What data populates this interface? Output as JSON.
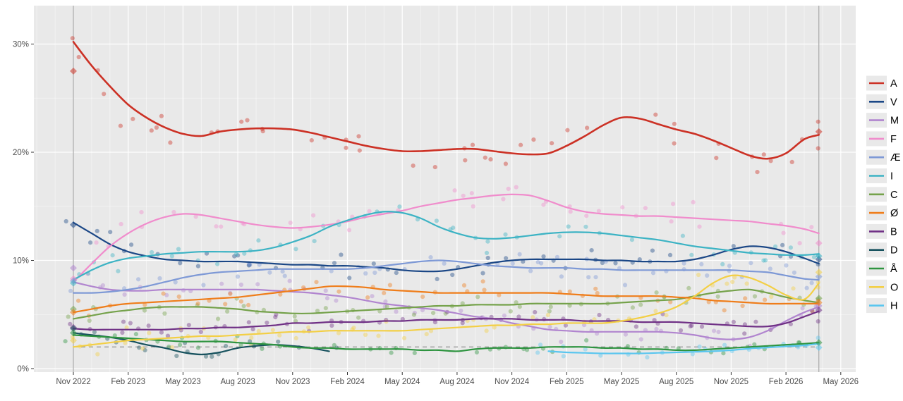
{
  "chart_data": {
    "type": "scatter",
    "subtype": "poll-scatter-with-loess-trend",
    "title": "",
    "x_start_label": "Nov 2022",
    "x_tick_labels": [
      "Nov 2022",
      "Feb 2023",
      "May 2023",
      "Aug 2023",
      "Nov 2023",
      "Feb 2024",
      "May 2024",
      "Aug 2024",
      "Nov 2024",
      "Feb 2025",
      "May 2025",
      "Aug 2025",
      "Nov 2025",
      "Feb 2026",
      "May 2026"
    ],
    "y_tick_labels": [
      "0%",
      "10%",
      "20%",
      "30%"
    ],
    "y_major_ticks": [
      0,
      10,
      20,
      30
    ],
    "y_minor_ticks": [
      5,
      15,
      25
    ],
    "ylim": [
      0,
      33.5
    ],
    "x_total_months": 42,
    "election_line_month": 0,
    "today_line_month": 40.8,
    "threshold_value": 2,
    "threshold_style": "dashed",
    "grid": "on",
    "legend_position": "right",
    "panel_bg": "#e9e9e9",
    "grid_color": "#ffffff",
    "refline_color": "#a8a8a8",
    "threshold_color": "#9a9a9a",
    "tick_label_color": "#4d4d4d",
    "parties": [
      {
        "letter": "A",
        "color": "#cc3125",
        "election_result": 27.5,
        "latest_avg": 21.9,
        "dot_spread": 1.5,
        "trend": [
          30.2,
          28.0,
          26.1,
          24.4,
          23.2,
          22.3,
          21.7,
          21.5,
          21.9,
          22.1,
          22.2,
          22.2,
          22.1,
          21.8,
          21.4,
          21.0,
          20.6,
          20.3,
          20.1,
          20.1,
          20.2,
          20.3,
          20.3,
          20.1,
          19.9,
          19.8,
          19.9,
          20.6,
          21.5,
          22.5,
          23.2,
          23.1,
          22.6,
          22.1,
          21.7,
          21.1,
          20.4,
          19.7,
          19.4,
          19.9,
          21.2,
          21.6
        ]
      },
      {
        "letter": "V",
        "color": "#1b4786",
        "election_result": 13.3,
        "latest_avg": 10.1,
        "dot_spread": 1.0,
        "trend": [
          13.5,
          12.5,
          11.5,
          10.8,
          10.4,
          10.1,
          10.0,
          9.9,
          9.9,
          9.9,
          9.8,
          9.7,
          9.6,
          9.6,
          9.5,
          9.5,
          9.4,
          9.3,
          9.1,
          9.0,
          9.0,
          9.2,
          9.5,
          9.8,
          10.0,
          10.1,
          10.1,
          10.1,
          10.1,
          10.0,
          10.0,
          9.9,
          9.9,
          9.9,
          10.1,
          10.5,
          11.0,
          11.3,
          11.2,
          10.8,
          10.2,
          9.7
        ]
      },
      {
        "letter": "M",
        "color": "#b185cf",
        "election_result": 9.3,
        "latest_avg": 5.8,
        "dot_spread": 0.9,
        "trend": [
          8.0,
          7.6,
          7.3,
          7.2,
          7.2,
          7.3,
          7.3,
          7.3,
          7.3,
          7.3,
          7.3,
          7.2,
          7.1,
          7.0,
          6.8,
          6.6,
          6.3,
          6.0,
          5.8,
          5.6,
          5.4,
          5.1,
          4.8,
          4.6,
          4.2,
          3.9,
          3.6,
          3.5,
          3.4,
          3.4,
          3.4,
          3.4,
          3.4,
          3.3,
          3.1,
          2.8,
          2.7,
          2.9,
          3.5,
          4.4,
          5.2,
          5.7
        ]
      },
      {
        "letter": "F",
        "color": "#f08ccc",
        "election_result": 8.3,
        "latest_avg": 11.6,
        "dot_spread": 1.1,
        "trend": [
          8.0,
          9.7,
          11.3,
          12.5,
          13.4,
          14.0,
          14.3,
          14.2,
          13.9,
          13.6,
          13.3,
          13.1,
          13.0,
          13.1,
          13.3,
          13.6,
          14.0,
          14.3,
          14.6,
          15.0,
          15.3,
          15.6,
          15.8,
          16.0,
          16.1,
          16.0,
          15.5,
          14.9,
          14.5,
          14.3,
          14.2,
          14.1,
          14.1,
          14.0,
          13.9,
          13.8,
          13.7,
          13.6,
          13.4,
          13.2,
          12.9,
          12.5
        ]
      },
      {
        "letter": "Æ",
        "color": "#7e99d6",
        "election_result": 8.1,
        "latest_avg": 8.5,
        "dot_spread": 1.0,
        "trend": [
          7.0,
          7.0,
          7.1,
          7.3,
          7.6,
          8.0,
          8.4,
          8.7,
          8.9,
          9.0,
          9.1,
          9.2,
          9.2,
          9.2,
          9.2,
          9.2,
          9.3,
          9.5,
          9.7,
          9.9,
          10.0,
          9.9,
          9.7,
          9.5,
          9.4,
          9.3,
          9.3,
          9.3,
          9.2,
          9.2,
          9.1,
          9.1,
          9.1,
          9.1,
          9.1,
          9.1,
          9.1,
          9.0,
          8.9,
          8.6,
          8.3,
          8.2
        ]
      },
      {
        "letter": "I",
        "color": "#3cb3c4",
        "election_result": 7.9,
        "latest_avg": 10.4,
        "dot_spread": 1.0,
        "trend": [
          8.2,
          9.1,
          9.8,
          10.2,
          10.4,
          10.6,
          10.7,
          10.8,
          10.8,
          10.8,
          10.9,
          11.2,
          11.7,
          12.3,
          13.1,
          13.7,
          14.2,
          14.5,
          14.4,
          13.9,
          13.1,
          12.5,
          12.1,
          12.0,
          12.1,
          12.3,
          12.5,
          12.6,
          12.6,
          12.5,
          12.3,
          12.1,
          11.9,
          11.6,
          11.3,
          11.1,
          10.9,
          10.7,
          10.6,
          10.5,
          10.5,
          10.6
        ]
      },
      {
        "letter": "C",
        "color": "#75a24b",
        "election_result": 5.5,
        "latest_avg": 6.5,
        "dot_spread": 0.8,
        "trend": [
          4.6,
          4.9,
          5.2,
          5.4,
          5.6,
          5.7,
          5.7,
          5.7,
          5.6,
          5.5,
          5.3,
          5.2,
          5.1,
          5.1,
          5.2,
          5.3,
          5.4,
          5.5,
          5.6,
          5.7,
          5.8,
          5.8,
          5.9,
          5.9,
          5.9,
          6.0,
          6.0,
          6.0,
          6.0,
          6.0,
          6.1,
          6.2,
          6.3,
          6.4,
          6.7,
          7.0,
          7.2,
          7.3,
          7.0,
          6.6,
          6.3,
          6.1
        ]
      },
      {
        "letter": "Ø",
        "color": "#ef7d1a",
        "election_result": 5.2,
        "latest_avg": 6.1,
        "dot_spread": 0.8,
        "trend": [
          5.2,
          5.5,
          5.8,
          6.0,
          6.1,
          6.2,
          6.3,
          6.4,
          6.5,
          6.6,
          6.8,
          7.0,
          7.2,
          7.4,
          7.6,
          7.6,
          7.5,
          7.3,
          7.2,
          7.1,
          7.0,
          7.0,
          7.0,
          7.0,
          7.0,
          7.0,
          7.0,
          6.9,
          6.8,
          6.7,
          6.7,
          6.7,
          6.7,
          6.6,
          6.5,
          6.3,
          6.2,
          6.1,
          6.0,
          6.0,
          6.0,
          6.0
        ]
      },
      {
        "letter": "B",
        "color": "#703186",
        "election_result": 3.8,
        "latest_avg": 5.4,
        "dot_spread": 0.7,
        "trend": [
          3.7,
          3.6,
          3.6,
          3.6,
          3.6,
          3.6,
          3.7,
          3.7,
          3.8,
          3.8,
          3.9,
          4.0,
          4.2,
          4.2,
          4.3,
          4.3,
          4.3,
          4.4,
          4.4,
          4.5,
          4.5,
          4.5,
          4.6,
          4.6,
          4.6,
          4.5,
          4.5,
          4.5,
          4.4,
          4.4,
          4.4,
          4.3,
          4.3,
          4.3,
          4.2,
          4.1,
          4.0,
          3.9,
          3.9,
          4.2,
          4.8,
          5.3
        ]
      },
      {
        "letter": "D",
        "color": "#17525e",
        "election_result": 3.7,
        "latest_avg": null,
        "dot_spread": 0.6,
        "trend": [
          3.3,
          3.1,
          2.9,
          2.6,
          2.2,
          1.9,
          1.5,
          1.3,
          1.5,
          1.9,
          2.1,
          2.2,
          2.1,
          1.9,
          1.6,
          null,
          null,
          null,
          null,
          null,
          null,
          null,
          null,
          null,
          null,
          null,
          null,
          null,
          null,
          null,
          null,
          null,
          null,
          null,
          null,
          null,
          null,
          null,
          null,
          null,
          null,
          null
        ]
      },
      {
        "letter": "Å",
        "color": "#2e9440",
        "election_result": 3.3,
        "latest_avg": 2.4,
        "dot_spread": 0.6,
        "trend": [
          3.1,
          3.0,
          2.9,
          2.8,
          2.7,
          2.6,
          2.5,
          2.5,
          2.5,
          2.4,
          2.3,
          2.2,
          2.0,
          1.9,
          1.9,
          1.8,
          1.8,
          1.8,
          1.8,
          1.7,
          1.7,
          1.6,
          1.8,
          1.9,
          1.9,
          1.9,
          2.0,
          2.0,
          2.0,
          1.9,
          1.9,
          1.8,
          1.8,
          1.7,
          1.7,
          1.8,
          1.9,
          2.0,
          2.1,
          2.2,
          2.3,
          2.4
        ]
      },
      {
        "letter": "O",
        "color": "#f3cf45",
        "election_result": 2.6,
        "latest_avg": 8.9,
        "dot_spread": 0.9,
        "trend": [
          2.0,
          2.2,
          2.4,
          2.6,
          2.7,
          2.8,
          2.9,
          3.0,
          3.0,
          3.1,
          3.2,
          3.3,
          3.4,
          3.4,
          3.5,
          3.5,
          3.5,
          3.5,
          3.5,
          3.6,
          3.7,
          3.8,
          3.9,
          4.0,
          4.0,
          4.1,
          4.1,
          4.2,
          4.2,
          4.2,
          4.4,
          4.7,
          5.1,
          5.7,
          6.7,
          7.9,
          8.6,
          8.4,
          7.7,
          6.8,
          6.4,
          7.9
        ]
      },
      {
        "letter": "H",
        "color": "#5ac6ef",
        "election_result": null,
        "latest_avg": 1.95,
        "dot_spread": 0.5,
        "trend": [
          null,
          null,
          null,
          null,
          null,
          null,
          null,
          null,
          null,
          null,
          null,
          null,
          null,
          null,
          null,
          null,
          null,
          null,
          null,
          null,
          null,
          null,
          null,
          null,
          null,
          null,
          1.6,
          1.5,
          1.45,
          1.4,
          1.4,
          1.4,
          1.45,
          1.5,
          1.55,
          1.6,
          1.7,
          1.85,
          1.95,
          2.05,
          2.15,
          2.3
        ]
      }
    ]
  }
}
